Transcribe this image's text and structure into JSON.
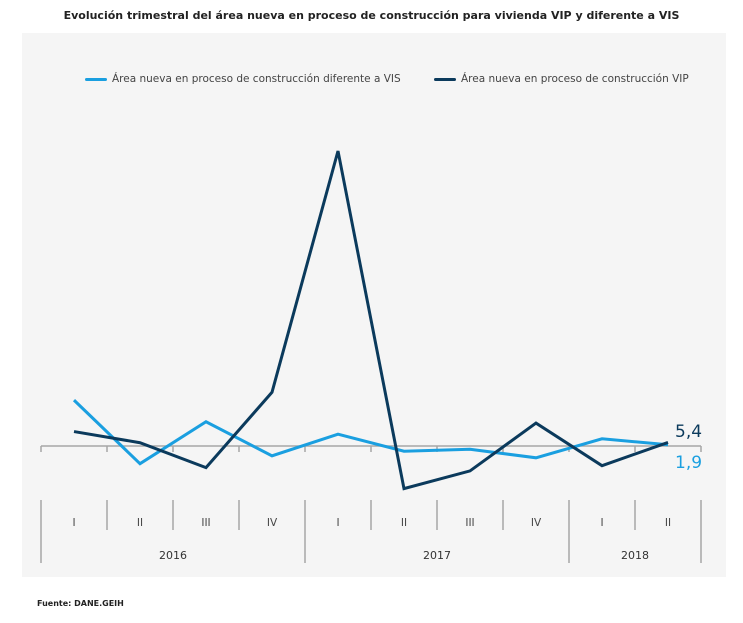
{
  "title": "Evolución trimestral del área nueva en proceso de construcción para vivienda VIP y diferente a VIS",
  "source": "Fuente: DANE.GEIH",
  "chart_data": {
    "type": "line",
    "title": "Evolución trimestral del área nueva en proceso de construcción para vivienda VIP y diferente a VIS",
    "xlabel": "",
    "ylabel": "",
    "grid": false,
    "legend_position": "top",
    "categories": [
      "I",
      "II",
      "III",
      "IV",
      "I",
      "II",
      "III",
      "IV",
      "I",
      "II"
    ],
    "years": [
      {
        "label": "2016",
        "span": 4
      },
      {
        "label": "2017",
        "span": 4
      },
      {
        "label": "2018",
        "span": 2
      }
    ],
    "ylim": [
      -60,
      470
    ],
    "series": [
      {
        "name": "Área nueva en proceso de construcción diferente a VIS",
        "color": "#1a9fe0",
        "values": [
          70,
          -27,
          37,
          -15,
          18,
          -8,
          -5,
          -18,
          11,
          1.9
        ],
        "end_label": "1,9"
      },
      {
        "name": "Área nueva en proceso de construcción VIP",
        "color": "#0b3a5c",
        "values": [
          22,
          5,
          -33,
          82,
          450,
          -65,
          -38,
          35,
          -30,
          5.4
        ],
        "end_label": "5,4"
      }
    ]
  }
}
